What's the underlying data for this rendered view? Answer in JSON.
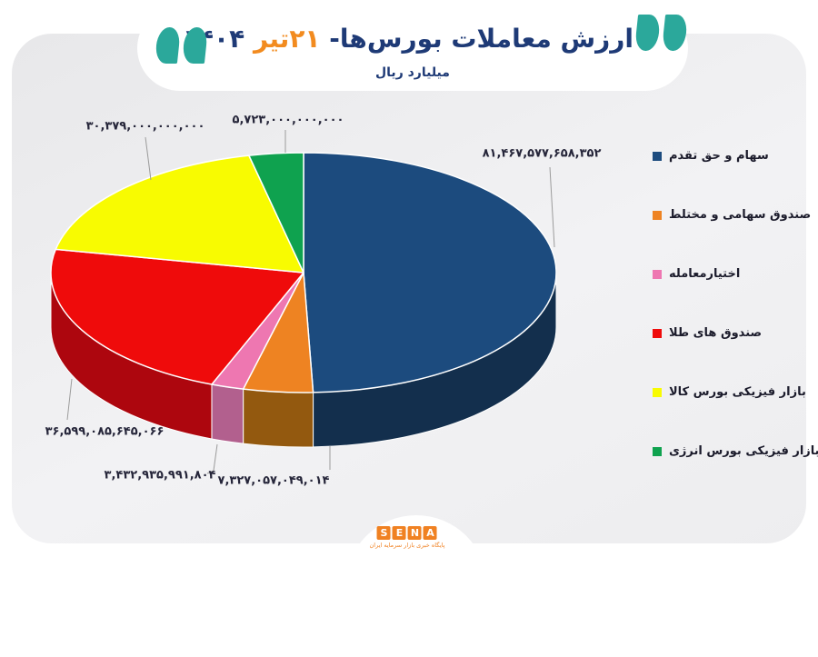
{
  "header": {
    "title_main": "ارزش معاملات بورس‌ها-",
    "title_date": "۲۱تیر",
    "title_year": "۱۴۰۴",
    "subtitle": "میلیارد ریال",
    "colors": {
      "title": "#1e3a76",
      "date": "#f28b1f",
      "quotes": "#2ba89b"
    }
  },
  "chart_data": {
    "type": "pie",
    "effect": "3d",
    "title": "ارزش معاملات بورس‌ها- ۲۱تیر ۱۴۰۴",
    "unit": "میلیارد ریال",
    "start_angle_deg": 0,
    "direction": "clockwise",
    "legend_position": "right",
    "slices": [
      {
        "label": "سهام و حق تقدم",
        "value": 81467577658352,
        "display": "۸۱,۴۶۷,۵۷۷,۶۵۸,۳۵۲",
        "color": "#1c4b7e",
        "side_color": "#132f4d"
      },
      {
        "label": "صندوق سهامی و مختلط",
        "value": 7327057049014,
        "display": "۷,۳۲۷,۰۵۷,۰۴۹,۰۱۴",
        "color": "#ee8322",
        "side_color": "#93590f"
      },
      {
        "label": "اختیارمعامله",
        "value": 3432935991804,
        "display": "۳,۴۳۲,۹۳۵,۹۹۱,۸۰۴",
        "color": "#ee77b1",
        "side_color": "#b2608e"
      },
      {
        "label": "صندوق های طلا",
        "value": 36599085645066,
        "display": "۳۶,۵۹۹,۰۸۵,۶۴۵,۰۶۶",
        "color": "#ef0b0b",
        "side_color": "#ad060e"
      },
      {
        "label": "بازار فیزیکی بورس کالا",
        "value": 30379000000000,
        "display": "۳۰,۳۷۹,۰۰۰,۰۰۰,۰۰۰",
        "color": "#f8fb01",
        "side_color": "#b5b600"
      },
      {
        "label": "بازار فیزیکی بورس انرژی",
        "value": 5723000000000,
        "display": "۵,۷۲۳,۰۰۰,۰۰۰,۰۰۰",
        "color": "#0fa24f",
        "side_color": "#0a6e36"
      }
    ]
  },
  "footer": {
    "logo_letters": [
      "S",
      "E",
      "N",
      "A"
    ],
    "logo_caption": "پایگاه خبری بازار سرمایه ایران",
    "logo_color": "#f08122"
  }
}
